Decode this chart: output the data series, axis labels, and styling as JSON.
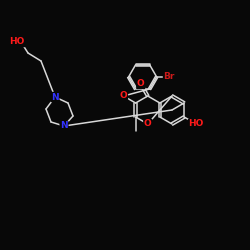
{
  "bg_color": "#080808",
  "bond_color": "#d8d8d8",
  "atom_colors": {
    "N": "#3333ff",
    "O": "#ff1a1a",
    "Br": "#cc1a1a",
    "C": "#d8d8d8"
  },
  "font_size": 6.5,
  "lw": 1.1
}
